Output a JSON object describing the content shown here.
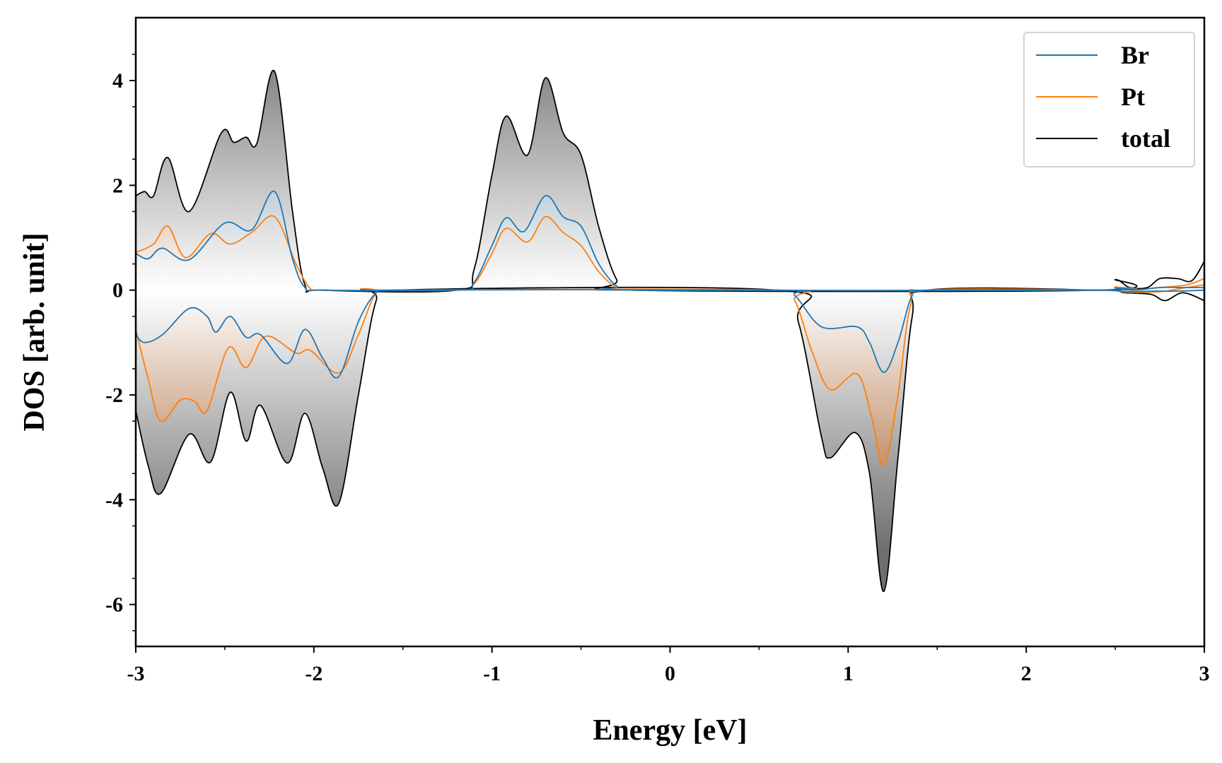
{
  "chart_data": {
    "type": "area",
    "xlabel": "Energy [eV]",
    "ylabel": "DOS [arb. unit]",
    "xlim": [
      -3,
      3
    ],
    "ylim": [
      -6.8,
      5.2
    ],
    "x_ticks": [
      -3,
      -2,
      -1,
      0,
      1,
      2,
      3
    ],
    "x_tick_labels": [
      "-3",
      "-2",
      "-1",
      "0",
      "1",
      "2",
      "3"
    ],
    "y_ticks": [
      -6,
      -4,
      -2,
      0,
      2,
      4
    ],
    "y_tick_labels": [
      "-6",
      "-4",
      "-2",
      "0",
      "2",
      "4"
    ],
    "grid": false,
    "legend_position": "top-right",
    "colors": {
      "Br": "#1f77b4",
      "Pt": "#ff7f0e",
      "total": "#000000",
      "fill_total": "#777777",
      "fill_pt": "#c8661a",
      "fill_br": "#6a9ec2"
    },
    "series": [
      {
        "name": "Br",
        "up": [
          [
            -3.0,
            0.7
          ],
          [
            -2.93,
            0.6
          ],
          [
            -2.85,
            0.8
          ],
          [
            -2.7,
            0.58
          ],
          [
            -2.5,
            1.28
          ],
          [
            -2.35,
            1.15
          ],
          [
            -2.22,
            1.88
          ],
          [
            -2.12,
            0.6
          ],
          [
            -2.05,
            0.05
          ],
          [
            -1.95,
            0.0
          ],
          [
            -1.2,
            0.0
          ],
          [
            -1.1,
            0.15
          ],
          [
            -1.0,
            0.85
          ],
          [
            -0.92,
            1.38
          ],
          [
            -0.82,
            1.12
          ],
          [
            -0.7,
            1.8
          ],
          [
            -0.6,
            1.4
          ],
          [
            -0.5,
            1.22
          ],
          [
            -0.4,
            0.5
          ],
          [
            -0.3,
            0.08
          ],
          [
            -0.2,
            0.0
          ],
          [
            2.4,
            0.0
          ],
          [
            2.5,
            0.04
          ],
          [
            2.6,
            0.0
          ],
          [
            2.75,
            0.05
          ],
          [
            2.9,
            0.05
          ],
          [
            3.0,
            0.05
          ]
        ],
        "down": [
          [
            -3.0,
            -0.85
          ],
          [
            -2.95,
            -1.0
          ],
          [
            -2.85,
            -0.85
          ],
          [
            -2.7,
            -0.35
          ],
          [
            -2.6,
            -0.5
          ],
          [
            -2.55,
            -0.8
          ],
          [
            -2.47,
            -0.5
          ],
          [
            -2.38,
            -0.9
          ],
          [
            -2.3,
            -0.85
          ],
          [
            -2.15,
            -1.4
          ],
          [
            -2.05,
            -0.75
          ],
          [
            -1.95,
            -1.3
          ],
          [
            -1.86,
            -1.65
          ],
          [
            -1.75,
            -0.6
          ],
          [
            -1.65,
            -0.05
          ],
          [
            -1.55,
            0.0
          ],
          [
            0.6,
            0.0
          ],
          [
            0.7,
            -0.1
          ],
          [
            0.85,
            -0.7
          ],
          [
            1.05,
            -0.7
          ],
          [
            1.12,
            -1.0
          ],
          [
            1.2,
            -1.57
          ],
          [
            1.28,
            -1.0
          ],
          [
            1.36,
            -0.1
          ],
          [
            1.45,
            0.0
          ],
          [
            2.4,
            0.0
          ],
          [
            2.55,
            -0.03
          ],
          [
            2.7,
            -0.02
          ],
          [
            2.85,
            -0.02
          ],
          [
            3.0,
            0.0
          ]
        ]
      },
      {
        "name": "Pt",
        "up": [
          [
            -3.0,
            0.72
          ],
          [
            -2.9,
            0.88
          ],
          [
            -2.82,
            1.22
          ],
          [
            -2.72,
            0.62
          ],
          [
            -2.58,
            1.08
          ],
          [
            -2.47,
            0.88
          ],
          [
            -2.35,
            1.1
          ],
          [
            -2.22,
            1.4
          ],
          [
            -2.1,
            0.5
          ],
          [
            -2.02,
            0.03
          ],
          [
            -1.95,
            0.0
          ],
          [
            -1.2,
            0.0
          ],
          [
            -1.1,
            0.12
          ],
          [
            -1.0,
            0.7
          ],
          [
            -0.92,
            1.18
          ],
          [
            -0.8,
            0.92
          ],
          [
            -0.7,
            1.4
          ],
          [
            -0.6,
            1.1
          ],
          [
            -0.5,
            0.85
          ],
          [
            -0.4,
            0.35
          ],
          [
            -0.3,
            0.05
          ],
          [
            -0.2,
            0.0
          ],
          [
            2.4,
            0.0
          ],
          [
            2.5,
            0.06
          ],
          [
            2.6,
            0.0
          ],
          [
            2.75,
            0.05
          ],
          [
            2.9,
            0.1
          ],
          [
            3.0,
            0.22
          ]
        ],
        "down": [
          [
            -3.0,
            -0.75
          ],
          [
            -2.93,
            -1.7
          ],
          [
            -2.86,
            -2.5
          ],
          [
            -2.75,
            -2.1
          ],
          [
            -2.67,
            -2.12
          ],
          [
            -2.6,
            -2.3
          ],
          [
            -2.48,
            -1.1
          ],
          [
            -2.38,
            -1.48
          ],
          [
            -2.27,
            -0.88
          ],
          [
            -2.1,
            -1.2
          ],
          [
            -2.02,
            -1.15
          ],
          [
            -1.86,
            -1.58
          ],
          [
            -1.75,
            -0.85
          ],
          [
            -1.65,
            -0.05
          ],
          [
            -1.55,
            0.0
          ],
          [
            0.6,
            0.0
          ],
          [
            0.7,
            -0.2
          ],
          [
            0.8,
            -1.2
          ],
          [
            0.9,
            -1.9
          ],
          [
            1.05,
            -1.6
          ],
          [
            1.13,
            -2.4
          ],
          [
            1.2,
            -3.35
          ],
          [
            1.28,
            -2.0
          ],
          [
            1.35,
            -0.3
          ],
          [
            1.45,
            0.0
          ],
          [
            2.4,
            0.0
          ],
          [
            2.55,
            -0.04
          ],
          [
            2.75,
            -0.03
          ],
          [
            2.9,
            0.05
          ],
          [
            3.0,
            0.1
          ]
        ]
      },
      {
        "name": "total",
        "up": [
          [
            -3.0,
            1.8
          ],
          [
            -2.95,
            1.88
          ],
          [
            -2.9,
            1.8
          ],
          [
            -2.82,
            2.53
          ],
          [
            -2.7,
            1.5
          ],
          [
            -2.52,
            3.0
          ],
          [
            -2.45,
            2.82
          ],
          [
            -2.38,
            2.92
          ],
          [
            -2.32,
            2.8
          ],
          [
            -2.22,
            4.17
          ],
          [
            -2.12,
            1.5
          ],
          [
            -2.05,
            0.1
          ],
          [
            -1.95,
            0.0
          ],
          [
            -1.2,
            0.0
          ],
          [
            -1.1,
            0.4
          ],
          [
            -1.0,
            2.2
          ],
          [
            -0.92,
            3.32
          ],
          [
            -0.8,
            2.58
          ],
          [
            -0.7,
            4.05
          ],
          [
            -0.6,
            3.0
          ],
          [
            -0.5,
            2.58
          ],
          [
            -0.4,
            1.2
          ],
          [
            -0.3,
            0.2
          ],
          [
            -0.2,
            0.0
          ],
          [
            2.4,
            0.0
          ],
          [
            2.5,
            0.2
          ],
          [
            2.58,
            0.05
          ],
          [
            2.68,
            0.05
          ],
          [
            2.75,
            0.22
          ],
          [
            2.85,
            0.22
          ],
          [
            2.93,
            0.18
          ],
          [
            3.0,
            0.55
          ]
        ],
        "down": [
          [
            -3.0,
            -2.3
          ],
          [
            -2.93,
            -3.35
          ],
          [
            -2.86,
            -3.88
          ],
          [
            -2.7,
            -2.75
          ],
          [
            -2.58,
            -3.28
          ],
          [
            -2.47,
            -1.95
          ],
          [
            -2.38,
            -2.88
          ],
          [
            -2.3,
            -2.2
          ],
          [
            -2.15,
            -3.3
          ],
          [
            -2.05,
            -2.35
          ],
          [
            -1.95,
            -3.4
          ],
          [
            -1.86,
            -4.07
          ],
          [
            -1.75,
            -2.0
          ],
          [
            -1.65,
            -0.2
          ],
          [
            -1.55,
            0.0
          ],
          [
            0.6,
            0.0
          ],
          [
            0.72,
            -0.6
          ],
          [
            0.85,
            -2.8
          ],
          [
            0.9,
            -3.2
          ],
          [
            1.04,
            -2.72
          ],
          [
            1.12,
            -3.5
          ],
          [
            1.2,
            -5.75
          ],
          [
            1.28,
            -3.2
          ],
          [
            1.36,
            -0.5
          ],
          [
            1.45,
            0.0
          ],
          [
            2.4,
            0.0
          ],
          [
            2.55,
            -0.05
          ],
          [
            2.7,
            -0.08
          ],
          [
            2.78,
            -0.2
          ],
          [
            2.88,
            -0.05
          ],
          [
            3.0,
            -0.2
          ]
        ]
      }
    ]
  }
}
